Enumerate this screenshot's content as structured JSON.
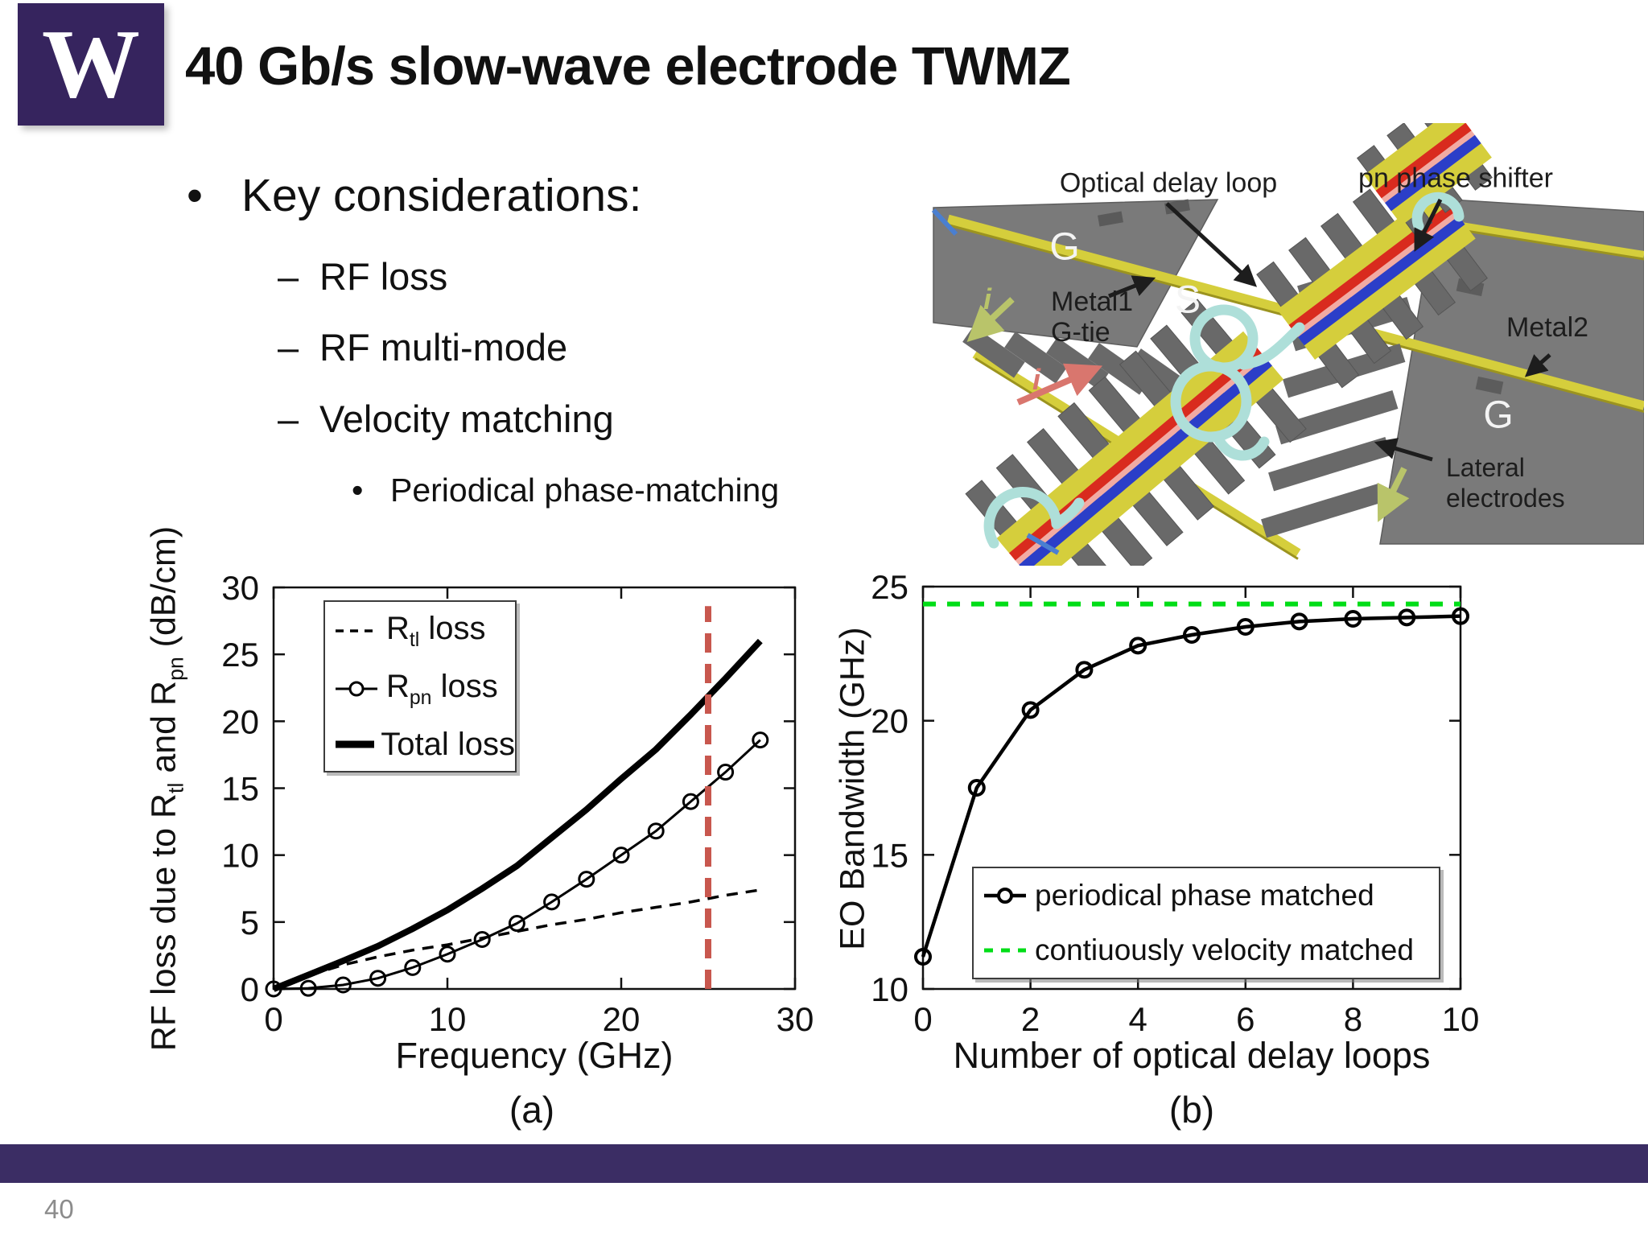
{
  "slide": {
    "logo_letter": "W",
    "title": "40 Gb/s slow-wave electrode TWMZ",
    "page_number": "40",
    "colors": {
      "logo_purple": "#36245e",
      "footer_purple": "#3b2d64",
      "title_black": "#111111",
      "page_number_gray": "#8c8c8c"
    }
  },
  "bullets": {
    "level1": "Key considerations:",
    "level2": [
      "RF loss",
      "RF multi-mode",
      "Velocity matching"
    ],
    "level3": "Periodical phase-matching"
  },
  "device_figure": {
    "labels": {
      "optical_delay_loop": "Optical delay loop",
      "pn_phase_shifter": "pn phase shifter",
      "metal1_line1": "Metal1",
      "metal1_line2": "G-tie",
      "metal2": "Metal2",
      "lateral_line1": "Lateral",
      "lateral_line2": "electrodes",
      "g_top": "G",
      "s_mid": "S",
      "g_right": "G",
      "i_left": "i",
      "i_mid": "i"
    },
    "colors": {
      "panel_gray": "#7a7a7a",
      "finger_gray": "#696969",
      "rail_yellow": "#d5ce3c",
      "pn_red": "#d92b1e",
      "pn_pink": "#f2aba3",
      "pn_blue": "#2b3ec8",
      "waveguide_cyan": "#aedfd9",
      "arrow_green": "#b9c46a",
      "arrow_red": "#d9766e",
      "arrow_blue": "#4a7fd1"
    }
  },
  "chart_data": [
    {
      "id": "a",
      "type": "line",
      "caption": "(a)",
      "xlabel": "Frequency (GHz)",
      "ylabel_parts": [
        {
          "t": "RF loss due to R"
        },
        {
          "t": "tl",
          "sub": true
        },
        {
          "t": " and R"
        },
        {
          "t": "pn",
          "sub": true
        },
        {
          "t": " (dB/cm)"
        }
      ],
      "xlim": [
        0,
        30
      ],
      "ylim": [
        0,
        30
      ],
      "xticks": [
        0,
        10,
        20,
        30
      ],
      "yticks": [
        0,
        5,
        10,
        15,
        20,
        25,
        30
      ],
      "grid": false,
      "legend_position": "upper-left",
      "x": [
        0,
        2,
        4,
        6,
        8,
        10,
        12,
        14,
        16,
        18,
        20,
        22,
        24,
        26,
        28
      ],
      "series": [
        {
          "id": "rtl",
          "label_parts": [
            {
              "t": "R"
            },
            {
              "t": "tl",
              "sub": true
            },
            {
              "t": " loss"
            }
          ],
          "style": "dashed",
          "color": "#000000",
          "values": [
            0,
            1.0,
            1.8,
            2.4,
            2.9,
            3.3,
            3.8,
            4.3,
            4.8,
            5.2,
            5.7,
            6.1,
            6.5,
            7.0,
            7.4
          ]
        },
        {
          "id": "rpn",
          "label_parts": [
            {
              "t": "R"
            },
            {
              "t": "pn",
              "sub": true
            },
            {
              "t": " loss"
            }
          ],
          "style": "circle",
          "color": "#000000",
          "values": [
            0,
            0.05,
            0.3,
            0.8,
            1.6,
            2.6,
            3.7,
            4.9,
            6.5,
            8.2,
            10.0,
            11.8,
            14.0,
            16.2,
            18.6
          ]
        },
        {
          "id": "total",
          "label_parts": [
            {
              "t": "Total loss"
            }
          ],
          "style": "thick",
          "color": "#000000",
          "values": [
            0,
            1.05,
            2.1,
            3.2,
            4.5,
            5.9,
            7.5,
            9.2,
            11.3,
            13.4,
            15.7,
            17.9,
            20.5,
            23.2,
            26.0
          ]
        }
      ],
      "vline": {
        "x": 25,
        "ymax": 28.6,
        "color": "#c8574e",
        "style": "dashed"
      }
    },
    {
      "id": "b",
      "type": "line",
      "caption": "(b)",
      "xlabel": "Number of optical delay loops",
      "ylabel_parts": [
        {
          "t": "EO Bandwidth (GHz)"
        }
      ],
      "xlim": [
        0,
        10
      ],
      "ylim": [
        10,
        25
      ],
      "xticks": [
        0,
        2,
        4,
        6,
        8,
        10
      ],
      "yticks": [
        10,
        15,
        20,
        25
      ],
      "grid": false,
      "legend_position": "lower-right",
      "x": [
        0,
        1,
        2,
        3,
        4,
        5,
        6,
        7,
        8,
        9,
        10
      ],
      "series": [
        {
          "id": "ppm",
          "label_parts": [
            {
              "t": "periodical phase matched"
            }
          ],
          "style": "circle-bold",
          "color": "#000000",
          "values": [
            11.2,
            17.5,
            20.4,
            21.9,
            22.8,
            23.2,
            23.5,
            23.7,
            23.8,
            23.85,
            23.9
          ]
        }
      ],
      "hline": {
        "value": 24.35,
        "color": "#00dd17",
        "style": "dashed",
        "label_parts": [
          {
            "t": "contiuously velocity matched"
          }
        ]
      }
    }
  ]
}
